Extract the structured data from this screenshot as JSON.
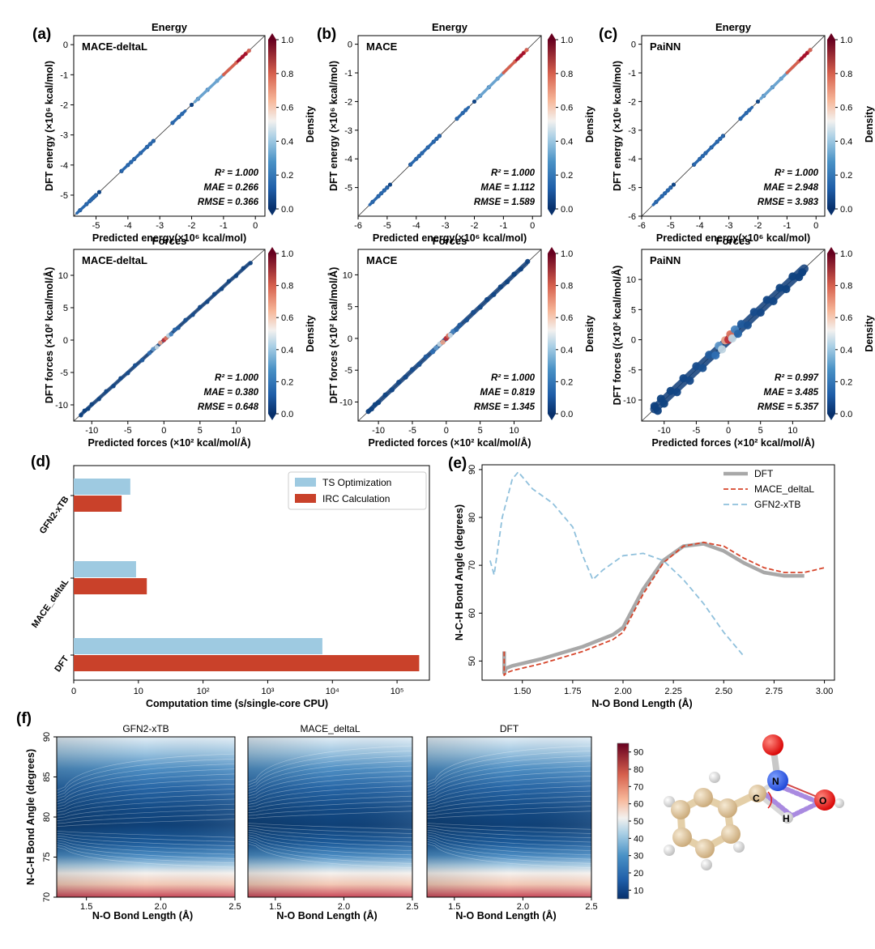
{
  "colors": {
    "bar_ts": "#9ecae1",
    "bar_irc": "#c9412a",
    "dft_line": "#a8a8a8",
    "mace_line": "#d6452b",
    "gfn_line": "#8fc0dc",
    "parity_low": "#1b4f8a",
    "parity_high": "#c52b31"
  },
  "chart_data": [
    {
      "id": "a_energy",
      "type": "scatter",
      "panel_label": "(a)",
      "title": "Energy",
      "model": "MACE-deltaL",
      "xlabel": "Predicted energy(×10⁶ kcal/mol)",
      "ylabel": "DFT energy (×10⁶ kcal/mol)",
      "xlim": [
        -5.7,
        0.3
      ],
      "ylim": [
        -5.7,
        0.3
      ],
      "xticks": [
        -5,
        -4,
        -3,
        -2,
        -1,
        0
      ],
      "yticks": [
        -5,
        -4,
        -3,
        -2,
        -1,
        0
      ],
      "x": [
        -5.5,
        -5.3,
        -5.2,
        -5.15,
        -5.1,
        -5.05,
        -5.0,
        -4.9,
        -4.2,
        -4.0,
        -3.9,
        -3.8,
        -3.6,
        -3.4,
        -3.3,
        -3.2,
        -2.6,
        -2.4,
        -2.3,
        -2.0,
        -1.8,
        -1.5,
        -1.2,
        -1.0,
        -0.8,
        -0.6,
        -0.5,
        -0.4,
        -0.3,
        -0.2
      ],
      "y": [
        -5.5,
        -5.3,
        -5.2,
        -5.15,
        -5.1,
        -5.05,
        -5.0,
        -4.9,
        -4.2,
        -4.0,
        -3.9,
        -3.8,
        -3.6,
        -3.4,
        -3.3,
        -3.2,
        -2.6,
        -2.4,
        -2.3,
        -2.0,
        -1.8,
        -1.5,
        -1.2,
        -1.0,
        -0.8,
        -0.6,
        -0.5,
        -0.4,
        -0.3,
        -0.2
      ],
      "density": [
        0.05,
        0.05,
        0.1,
        0.1,
        0.1,
        0.1,
        0.05,
        0.05,
        0.05,
        0.1,
        0.1,
        0.1,
        0.05,
        0.05,
        0.05,
        0.05,
        0.15,
        0.15,
        0.2,
        0.05,
        0.2,
        0.25,
        0.35,
        0.5,
        0.55,
        0.7,
        0.8,
        0.9,
        0.95,
        0.85
      ],
      "stats": {
        "r2": "R² = 1.000",
        "mae": "MAE = 0.266",
        "rmse": "RMSE = 0.366"
      }
    },
    {
      "id": "b_energy",
      "type": "scatter",
      "panel_label": "(b)",
      "title": "Energy",
      "model": "MACE",
      "xlabel": "Predicted energy(×10⁶ kcal/mol)",
      "ylabel": "DFT energy (×10⁶ kcal/mol)",
      "xlim": [
        -6.0,
        0.3
      ],
      "ylim": [
        -6.0,
        0.3
      ],
      "xticks": [
        -6,
        -5,
        -4,
        -3,
        -2,
        -1,
        0
      ],
      "yticks": [
        -5,
        -4,
        -3,
        -2,
        -1,
        0
      ],
      "x": [
        -5.5,
        -5.3,
        -5.2,
        -5.1,
        -5.0,
        -4.9,
        -4.2,
        -4.0,
        -3.9,
        -3.8,
        -3.6,
        -3.4,
        -3.3,
        -3.2,
        -2.6,
        -2.4,
        -2.3,
        -2.0,
        -1.8,
        -1.5,
        -1.2,
        -1.0,
        -0.8,
        -0.6,
        -0.5,
        -0.4,
        -0.3,
        -0.2
      ],
      "y": [
        -5.5,
        -5.3,
        -5.2,
        -5.1,
        -5.0,
        -4.9,
        -4.2,
        -4.0,
        -3.9,
        -3.8,
        -3.6,
        -3.4,
        -3.3,
        -3.2,
        -2.6,
        -2.4,
        -2.3,
        -2.0,
        -1.8,
        -1.5,
        -1.2,
        -1.0,
        -0.8,
        -0.6,
        -0.5,
        -0.4,
        -0.3,
        -0.2
      ],
      "density": [
        0.05,
        0.05,
        0.1,
        0.1,
        0.05,
        0.05,
        0.05,
        0.1,
        0.1,
        0.1,
        0.05,
        0.05,
        0.05,
        0.05,
        0.15,
        0.15,
        0.2,
        0.05,
        0.2,
        0.25,
        0.35,
        0.5,
        0.55,
        0.7,
        0.8,
        0.9,
        0.95,
        0.85
      ],
      "stats": {
        "r2": "R² = 1.000",
        "mae": "MAE = 1.112",
        "rmse": "RMSE = 1.589"
      }
    },
    {
      "id": "c_energy",
      "type": "scatter",
      "panel_label": "(c)",
      "title": "Energy",
      "model": "PaiNN",
      "xlabel": "Predicted energy(×10⁶ kcal/mol)",
      "ylabel": "DFT energy (×10⁶ kcal/mol)",
      "xlim": [
        -6.0,
        0.3
      ],
      "ylim": [
        -6.0,
        0.3
      ],
      "xticks": [
        -6,
        -5,
        -4,
        -3,
        -2,
        -1,
        0
      ],
      "yticks": [
        -6,
        -5,
        -4,
        -3,
        -2,
        -1,
        0
      ],
      "x": [
        -5.5,
        -5.3,
        -5.2,
        -5.1,
        -5.0,
        -4.9,
        -4.2,
        -4.0,
        -3.9,
        -3.8,
        -3.6,
        -3.4,
        -3.3,
        -3.2,
        -2.6,
        -2.4,
        -2.3,
        -2.0,
        -1.8,
        -1.5,
        -1.2,
        -1.0,
        -0.8,
        -0.6,
        -0.5,
        -0.4,
        -0.3,
        -0.2
      ],
      "y": [
        -5.5,
        -5.3,
        -5.2,
        -5.1,
        -5.0,
        -4.9,
        -4.2,
        -4.0,
        -3.9,
        -3.8,
        -3.6,
        -3.4,
        -3.3,
        -3.2,
        -2.6,
        -2.4,
        -2.3,
        -2.0,
        -1.8,
        -1.5,
        -1.2,
        -1.0,
        -0.8,
        -0.6,
        -0.5,
        -0.4,
        -0.3,
        -0.2
      ],
      "density": [
        0.05,
        0.05,
        0.1,
        0.1,
        0.05,
        0.05,
        0.05,
        0.1,
        0.1,
        0.1,
        0.05,
        0.05,
        0.05,
        0.05,
        0.15,
        0.15,
        0.2,
        0.05,
        0.2,
        0.25,
        0.35,
        0.5,
        0.55,
        0.7,
        0.8,
        0.9,
        0.95,
        0.85
      ],
      "stats": {
        "r2": "R² = 1.000",
        "mae": "MAE = 2.948",
        "rmse": "RMSE = 3.983"
      }
    },
    {
      "id": "a_forces",
      "type": "scatter",
      "title": "Forces",
      "model": "MACE-deltaL",
      "xlabel": "Predicted forces (×10² kcal/mol/Å)",
      "ylabel": "DFT forces (×10² kcal/mol/Å)",
      "xlim": [
        -12.5,
        14
      ],
      "ylim": [
        -12.5,
        14
      ],
      "xticks": [
        -10,
        -5,
        0,
        5,
        10
      ],
      "yticks": [
        -10,
        -5,
        0,
        5,
        10
      ],
      "x": [
        -11.5,
        -11,
        -10.5,
        -10,
        -9,
        -8,
        -7,
        -6,
        -5,
        -4,
        -3,
        -2,
        -1.5,
        -1,
        -0.5,
        0,
        0.3,
        0.6,
        1,
        1.5,
        2,
        3,
        4,
        5,
        6,
        7,
        8,
        9,
        10,
        11,
        12
      ],
      "y": [
        -11.6,
        -10.9,
        -10.6,
        -9.9,
        -9.1,
        -7.9,
        -7.1,
        -5.9,
        -5.1,
        -3.9,
        -3.1,
        -2.0,
        -1.4,
        -1.1,
        -0.4,
        0.0,
        0.3,
        0.7,
        0.9,
        1.6,
        1.9,
        3.1,
        3.9,
        5.1,
        5.9,
        7.1,
        7.9,
        9.1,
        9.9,
        11.1,
        11.9
      ],
      "density": [
        0.02,
        0.02,
        0.03,
        0.03,
        0.04,
        0.05,
        0.05,
        0.06,
        0.08,
        0.1,
        0.15,
        0.25,
        0.35,
        0.5,
        0.7,
        0.95,
        0.8,
        0.5,
        0.3,
        0.2,
        0.15,
        0.1,
        0.08,
        0.06,
        0.05,
        0.05,
        0.04,
        0.03,
        0.03,
        0.02,
        0.02
      ],
      "spread": 0.2,
      "stats": {
        "r2": "R² = 1.000",
        "mae": "MAE = 0.380",
        "rmse": "RMSE = 0.648"
      }
    },
    {
      "id": "b_forces",
      "type": "scatter",
      "title": "Forces",
      "model": "MACE",
      "xlabel": "Predicted forces (×10² kcal/mol/Å)",
      "ylabel": "DFT forces (×10² kcal/mol/Å)",
      "xlim": [
        -13,
        14
      ],
      "ylim": [
        -13,
        14
      ],
      "xticks": [
        -10,
        -5,
        0,
        5,
        10
      ],
      "yticks": [
        -10,
        -5,
        0,
        5,
        10
      ],
      "x": [
        -11.5,
        -11,
        -10.5,
        -10,
        -9,
        -8,
        -7,
        -6,
        -5,
        -4,
        -3,
        -2,
        -1.5,
        -1,
        -0.5,
        0,
        0.3,
        0.6,
        1,
        1.5,
        2,
        3,
        4,
        5,
        6,
        7,
        8,
        9,
        10,
        11,
        12
      ],
      "y": [
        -11.5,
        -11.1,
        -10.4,
        -10.1,
        -8.9,
        -8.1,
        -6.9,
        -6.1,
        -4.9,
        -4.1,
        -2.9,
        -2.1,
        -1.5,
        -0.9,
        -0.6,
        0.0,
        0.4,
        0.5,
        1.1,
        1.4,
        2.1,
        2.9,
        4.1,
        4.9,
        6.1,
        6.9,
        8.1,
        8.9,
        10.1,
        10.9,
        12.1
      ],
      "density": [
        0.02,
        0.02,
        0.03,
        0.03,
        0.04,
        0.05,
        0.05,
        0.06,
        0.08,
        0.1,
        0.15,
        0.25,
        0.35,
        0.5,
        0.7,
        0.95,
        0.8,
        0.5,
        0.3,
        0.2,
        0.15,
        0.1,
        0.08,
        0.06,
        0.05,
        0.05,
        0.04,
        0.03,
        0.03,
        0.02,
        0.02
      ],
      "spread": 0.35,
      "stats": {
        "r2": "R² = 1.000",
        "mae": "MAE = 0.819",
        "rmse": "RMSE = 1.345"
      }
    },
    {
      "id": "c_forces",
      "type": "scatter",
      "title": "Forces",
      "model": "PaiNN",
      "xlabel": "Predicted forces (×10² kcal/mol/Å)",
      "ylabel": "DFT forces ((×10² kcal/mol/Å)",
      "xlim": [
        -13.5,
        15
      ],
      "ylim": [
        -13.5,
        15
      ],
      "xticks": [
        -10,
        -5,
        0,
        5,
        10
      ],
      "yticks": [
        -10,
        -5,
        0,
        5,
        10
      ],
      "x": [
        -11.5,
        -11,
        -10.5,
        -10,
        -9,
        -8,
        -7,
        -6,
        -5,
        -4,
        -3,
        -2,
        -1.5,
        -1,
        -0.5,
        0,
        0.3,
        0.6,
        1,
        1.5,
        2,
        3,
        4,
        5,
        6,
        7,
        8,
        9,
        10,
        11,
        11.5
      ],
      "y": [
        -11.0,
        -11.8,
        -9.8,
        -10.6,
        -8.5,
        -8.7,
        -6.4,
        -6.8,
        -4.4,
        -4.7,
        -2.5,
        -2.6,
        -1.0,
        -1.6,
        -0.1,
        0.0,
        0.9,
        0.2,
        1.7,
        1.0,
        2.6,
        2.4,
        4.6,
        4.5,
        6.6,
        6.4,
        8.6,
        8.4,
        10.5,
        10.4,
        11.2
      ],
      "density": [
        0.02,
        0.02,
        0.03,
        0.03,
        0.04,
        0.05,
        0.05,
        0.06,
        0.08,
        0.1,
        0.15,
        0.25,
        0.35,
        0.5,
        0.7,
        0.95,
        0.8,
        0.5,
        0.3,
        0.2,
        0.15,
        0.1,
        0.08,
        0.06,
        0.05,
        0.05,
        0.04,
        0.03,
        0.03,
        0.02,
        0.02
      ],
      "spread": 1.1,
      "stats": {
        "r2": "R² = 0.997",
        "mae": "MAE = 3.485",
        "rmse": "RMSE = 5.357"
      }
    },
    {
      "id": "d",
      "type": "bar",
      "orientation": "horizontal",
      "panel_label": "(d)",
      "categories": [
        "GFN2-xTB",
        "MACE_deltaL",
        "DFT"
      ],
      "series": [
        {
          "name": "TS Optimization",
          "values": [
            7.5,
            9.2,
            7000
          ]
        },
        {
          "name": "IRC Calculation",
          "values": [
            5.5,
            13.5,
            220000
          ]
        }
      ],
      "xscale": "log",
      "xlim_log": [
        0,
        5.5
      ],
      "xlabel": "Computation time (s/single-core CPU)",
      "xticks": [
        "0",
        "10",
        "10²",
        "10³",
        "10⁴",
        "10⁵"
      ],
      "legend_position": "top-right"
    },
    {
      "id": "e",
      "type": "line",
      "panel_label": "(e)",
      "xlabel": "N-O Bond Length (Å)",
      "ylabel": "N-C-H Bond Angle (degrees)",
      "xlim": [
        1.3,
        3.05
      ],
      "ylim": [
        46,
        91
      ],
      "xticks": [
        "1.50",
        "1.75",
        "2.00",
        "2.25",
        "2.50",
        "2.75",
        "3.00"
      ],
      "yticks": [
        "50",
        "60",
        "70",
        "80",
        "90"
      ],
      "series": [
        {
          "name": "DFT",
          "x": [
            1.41,
            1.41,
            1.42,
            1.45,
            1.6,
            1.8,
            1.95,
            2.0,
            2.1,
            2.2,
            2.3,
            2.4,
            2.5,
            2.6,
            2.7,
            2.8,
            2.9
          ],
          "y": [
            52,
            47.5,
            48.5,
            49,
            50.5,
            53,
            55.5,
            57,
            65,
            71,
            74,
            74.5,
            73,
            70.5,
            68.5,
            67.8,
            67.8
          ]
        },
        {
          "name": "MACE_deltaL",
          "x": [
            1.41,
            1.41,
            1.42,
            1.45,
            1.6,
            1.8,
            1.95,
            2.0,
            2.1,
            2.2,
            2.3,
            2.4,
            2.5,
            2.6,
            2.7,
            2.8,
            2.9,
            3.0
          ],
          "y": [
            52,
            47,
            47.5,
            48,
            49.5,
            52,
            54.5,
            56,
            64,
            70.5,
            74,
            74.8,
            74,
            71.5,
            69.5,
            68.5,
            68.5,
            69.5
          ]
        },
        {
          "name": "GFN2-xTB",
          "x": [
            1.34,
            1.36,
            1.4,
            1.45,
            1.48,
            1.55,
            1.65,
            1.75,
            1.8,
            1.85,
            1.9,
            2.0,
            2.1,
            2.2,
            2.3,
            2.4,
            2.5,
            2.6
          ],
          "y": [
            71,
            68,
            80,
            88,
            89.5,
            86,
            83,
            78,
            72,
            67,
            69,
            72,
            72.5,
            71,
            67,
            62,
            56,
            51
          ]
        }
      ],
      "legend_position": "top-right"
    },
    {
      "id": "f",
      "type": "heatmap",
      "panel_label": "(f)",
      "subplots": [
        "GFN2-xTB",
        "MACE_deltaL",
        "DFT"
      ],
      "xlabel": "N-O Bond Length (Å)",
      "ylabel": "N-C-H Bond Angle (degrees)",
      "xlim": [
        1.3,
        2.5
      ],
      "ylim": [
        70,
        90
      ],
      "xticks": [
        "1.5",
        "2.0",
        "2.5"
      ],
      "yticks": [
        "70",
        "75",
        "80",
        "85",
        "90"
      ],
      "minimum_angle": [
        78.5,
        79.5,
        79.5
      ],
      "colorbar_ticks": [
        "10",
        "20",
        "30",
        "40",
        "50",
        "60",
        "70",
        "80",
        "90"
      ]
    }
  ],
  "density_colorbar": {
    "label": "Density",
    "ticks": [
      "0.0",
      "0.2",
      "0.4",
      "0.6",
      "0.8",
      "1.0"
    ]
  },
  "molecule": {
    "atoms": [
      "N",
      "O",
      "C",
      "H"
    ]
  }
}
